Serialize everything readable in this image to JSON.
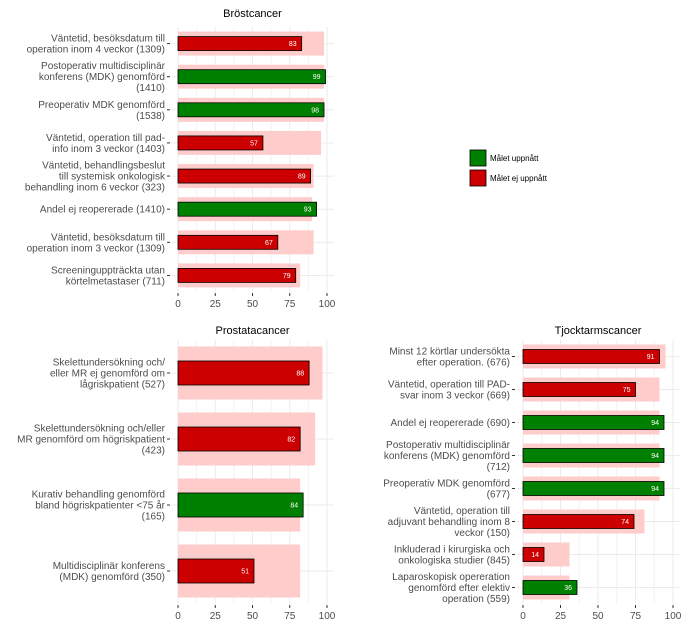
{
  "colors": {
    "achieved": "#008000",
    "not_achieved": "#cc0000",
    "target": "#ffcccc",
    "grid": "#ebebeb",
    "value_label": "#ffffff"
  },
  "legend": {
    "placement": "right",
    "entries": [
      {
        "label": "Målet uppnått",
        "color": "#008000"
      },
      {
        "label": "Målet ej uppnått",
        "color": "#cc0000"
      }
    ]
  },
  "chart_data": [
    {
      "type": "bar",
      "orientation": "horizontal",
      "title": "Bröstcancer",
      "xlim": [
        0,
        100
      ],
      "xticks": [
        0,
        25,
        50,
        75,
        100
      ],
      "bars": [
        {
          "label": "Väntetid, besöksdatum till\noperation inom 4 veckor (1309)",
          "value": 83,
          "target": 98,
          "achieved": false
        },
        {
          "label": "Postoperativ multidisciplinär\nkonferens (MDK) genomförd\n(1410)",
          "value": 99,
          "target": 98,
          "achieved": true
        },
        {
          "label": "Preoperativ MDK genomförd\n(1538)",
          "value": 98,
          "target": 98,
          "achieved": true
        },
        {
          "label": "Väntetid, operation till pad-\ninfo inom 3 veckor (1403)",
          "value": 57,
          "target": 96,
          "achieved": false
        },
        {
          "label": "Väntetid, behandlingsbeslut\ntill systemisk onkologisk\nbehandling inom 6 veckor (323)",
          "value": 89,
          "target": 91,
          "achieved": false
        },
        {
          "label": "Andel ej reopererade (1410)",
          "value": 93,
          "target": 90,
          "achieved": true
        },
        {
          "label": "Väntetid, besöksdatum till\noperation inom 3 veckor (1309)",
          "value": 67,
          "target": 91,
          "achieved": false
        },
        {
          "label": "Screeninguppträckta utan\nkörtelmetastaser (711)",
          "value": 79,
          "target": 82,
          "achieved": false
        }
      ]
    },
    {
      "type": "bar",
      "orientation": "horizontal",
      "title": "Prostatacancer",
      "xlim": [
        0,
        100
      ],
      "xticks": [
        0,
        25,
        50,
        75,
        100
      ],
      "bars": [
        {
          "label": "Skelettundersökning och/\neller MR ej genomförd om\nlågriskpatient (527)",
          "value": 88,
          "target": 97,
          "achieved": false
        },
        {
          "label": "Skelettundersökning och/eller\nMR genomförd om högriskpatient\n(423)",
          "value": 82,
          "target": 92,
          "achieved": false
        },
        {
          "label": "Kurativ behandling genomförd\nbland högriskpatienter <75 år\n(165)",
          "value": 84,
          "target": 82,
          "achieved": true
        },
        {
          "label": "Multidisciplinär konferens\n(MDK) genomförd (350)",
          "value": 51,
          "target": 82,
          "achieved": false
        }
      ]
    },
    {
      "type": "bar",
      "orientation": "horizontal",
      "title": "Tjocktarmscancer",
      "xlim": [
        0,
        100
      ],
      "xticks": [
        0,
        25,
        50,
        75,
        100
      ],
      "bars": [
        {
          "label": "Minst 12 körtlar undersökta\nefter operation. (676)",
          "value": 91,
          "target": 95,
          "achieved": false
        },
        {
          "label": "Väntetid, operation till PAD-\nsvar inom 3 veckor (669)",
          "value": 75,
          "target": 91,
          "achieved": false
        },
        {
          "label": "Andel ej reopererade (690)",
          "value": 94,
          "target": 91,
          "achieved": true
        },
        {
          "label": "Postoperativ multidisciplinär\nkonferens (MDK) genomförd\n(712)",
          "value": 94,
          "target": 91,
          "achieved": true
        },
        {
          "label": "Preoperativ MDK genomförd\n(677)",
          "value": 94,
          "target": 91,
          "achieved": true
        },
        {
          "label": "Väntetid, operation till\nadjuvant behandling inom 8\nveckor (150)",
          "value": 74,
          "target": 81,
          "achieved": false
        },
        {
          "label": "Inkluderad i kirurgiska och\nonkologiska studier (845)",
          "value": 14,
          "target": 31,
          "achieved": false
        },
        {
          "label": "Laparoskopisk opereration\ngenomförd efter elektiv\noperation (559)",
          "value": 36,
          "target": 31,
          "achieved": true
        }
      ]
    }
  ]
}
